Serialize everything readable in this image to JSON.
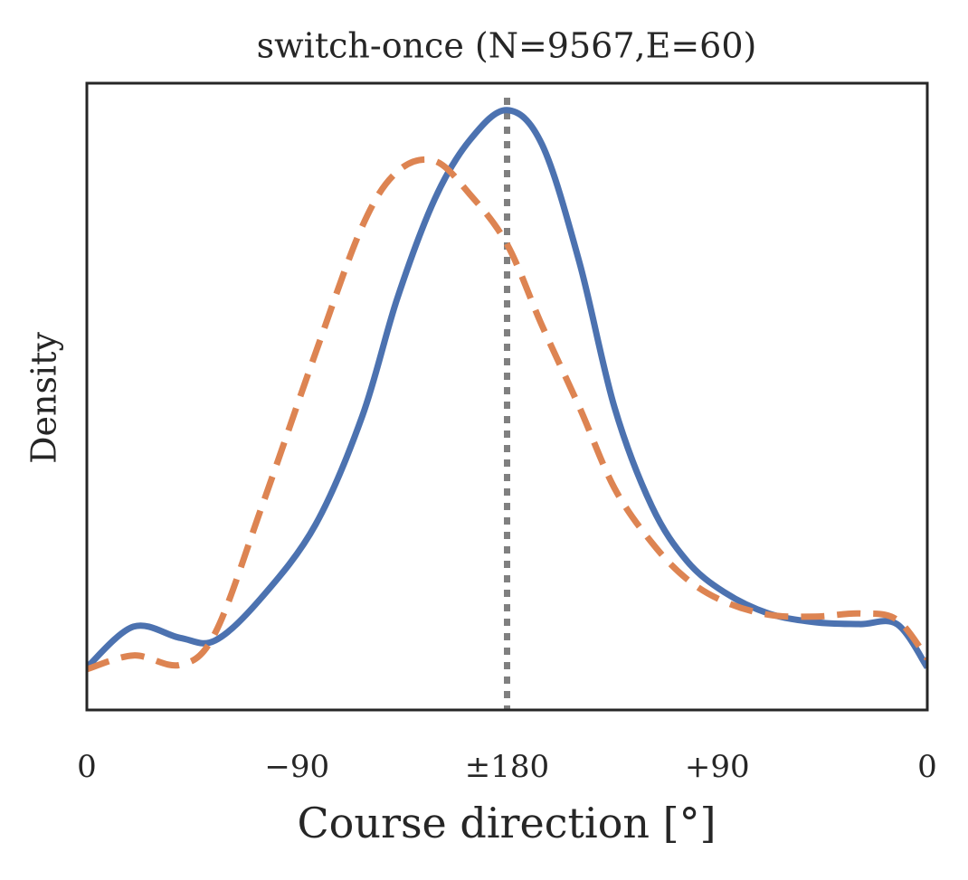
{
  "chart_data": {
    "type": "line",
    "title": "switch-once (N=9567,E=60)",
    "xlabel": "Course direction [°]",
    "ylabel": "Density",
    "x": [
      0,
      20,
      40,
      55,
      75,
      98,
      118,
      133,
      149,
      164,
      180,
      195,
      211,
      226,
      242,
      257,
      273,
      292,
      312,
      331,
      347,
      360
    ],
    "series": [
      {
        "color": "#4c72b0",
        "linestyle": "solid",
        "values": [
          0.068,
          0.133,
          0.115,
          0.111,
          0.18,
          0.296,
          0.469,
          0.657,
          0.815,
          0.909,
          0.957,
          0.902,
          0.714,
          0.483,
          0.325,
          0.238,
          0.188,
          0.154,
          0.14,
          0.137,
          0.137,
          0.068
        ]
      },
      {
        "color": "#dd8452",
        "linestyle": "dashed",
        "values": [
          0.065,
          0.087,
          0.072,
          0.123,
          0.325,
          0.57,
          0.772,
          0.859,
          0.876,
          0.823,
          0.743,
          0.613,
          0.483,
          0.354,
          0.267,
          0.209,
          0.173,
          0.152,
          0.149,
          0.154,
          0.144,
          0.082
        ]
      }
    ],
    "vline": {
      "x": 180,
      "color": "#808080",
      "linestyle": "dotted"
    },
    "xlim": [
      0,
      360
    ],
    "xticks": [
      0,
      {
        "value": 90,
        "label": "−90"
      },
      {
        "value": 180,
        "label": "±180"
      },
      {
        "value": 270,
        "label": "+90"
      },
      {
        "value": 360,
        "label": "0"
      }
    ],
    "ylim": [
      0,
      1
    ],
    "grid": false
  }
}
